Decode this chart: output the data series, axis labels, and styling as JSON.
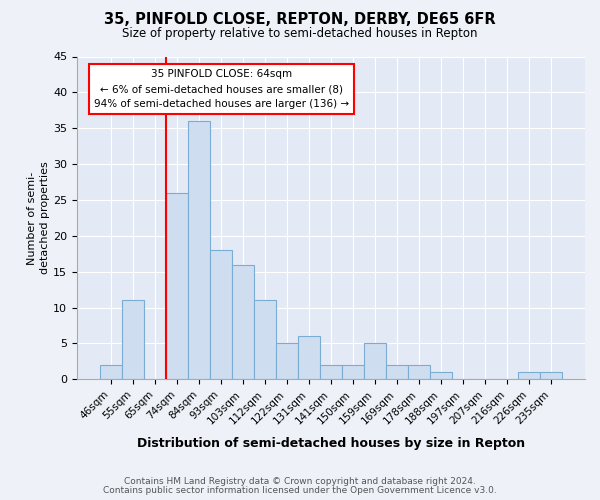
{
  "title": "35, PINFOLD CLOSE, REPTON, DERBY, DE65 6FR",
  "subtitle": "Size of property relative to semi-detached houses in Repton",
  "xlabel": "Distribution of semi-detached houses by size in Repton",
  "ylabel": "Number of semi-\ndetached properties",
  "categories": [
    "46sqm",
    "55sqm",
    "65sqm",
    "74sqm",
    "84sqm",
    "93sqm",
    "103sqm",
    "112sqm",
    "122sqm",
    "131sqm",
    "141sqm",
    "150sqm",
    "159sqm",
    "169sqm",
    "178sqm",
    "188sqm",
    "197sqm",
    "207sqm",
    "216sqm",
    "226sqm",
    "235sqm"
  ],
  "values": [
    2,
    11,
    0,
    26,
    36,
    18,
    16,
    11,
    5,
    6,
    2,
    2,
    5,
    2,
    2,
    1,
    0,
    0,
    0,
    1,
    1
  ],
  "bar_color": "#cfddf0",
  "bar_edge_color": "#7aadd4",
  "red_line_index": 2,
  "annotation_title": "35 PINFOLD CLOSE: 64sqm",
  "annotation_line2": "← 6% of semi-detached houses are smaller (8)",
  "annotation_line3": "94% of semi-detached houses are larger (136) →",
  "footnote1": "Contains HM Land Registry data © Crown copyright and database right 2024.",
  "footnote2": "Contains public sector information licensed under the Open Government Licence v3.0.",
  "ylim": [
    0,
    45
  ],
  "yticks": [
    0,
    5,
    10,
    15,
    20,
    25,
    30,
    35,
    40,
    45
  ],
  "bg_color": "#eef2f8",
  "plot_bg_color": "#e4eaf5"
}
